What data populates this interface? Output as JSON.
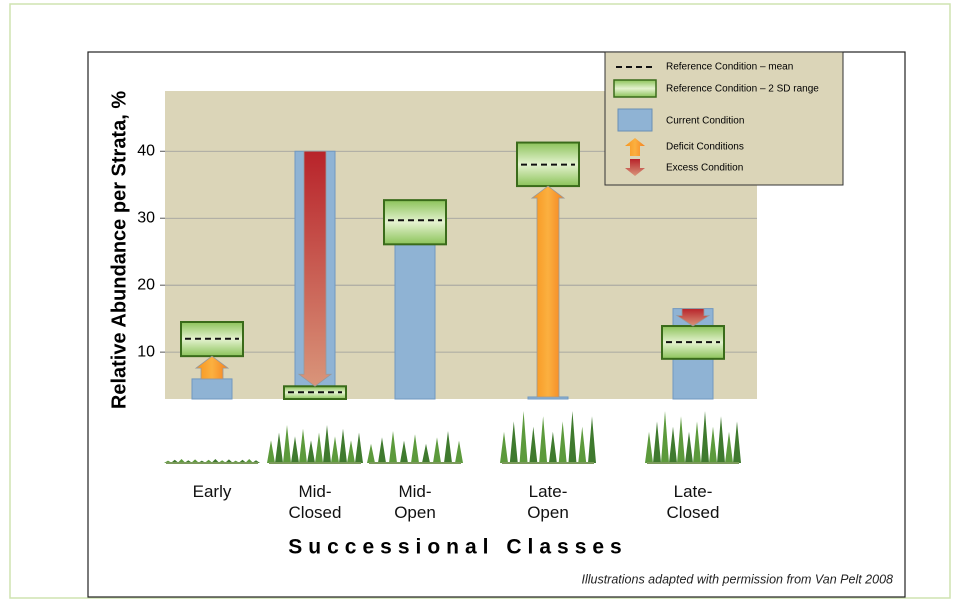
{
  "chart_data": {
    "type": "reference-range-bar",
    "y_label": "Relative Abundance per Strata, %",
    "x_label": "Successional Classes",
    "note": "Illustrations adapted with permission from Van Pelt 2008",
    "categories": [
      "Early",
      "Mid-\nClosed",
      "Mid-\nOpen",
      "Late-\nOpen",
      "Late-\nClosed"
    ],
    "current": {
      "name": "Current Condition",
      "color": "#8fb3d4",
      "values": [
        6,
        40,
        31.5,
        3.3,
        16.5
      ]
    },
    "reference_mean": {
      "name": "Reference Condition – mean",
      "values": [
        12,
        4,
        29.7,
        38,
        11.5
      ]
    },
    "reference_range": {
      "name": "Reference Condition – 2 SD range",
      "color": "#b5d98a",
      "low": [
        9.4,
        3,
        26.1,
        34.8,
        9
      ],
      "high": [
        14.5,
        4.9,
        32.7,
        41.3,
        13.9
      ]
    },
    "deficit": {
      "name": "Deficit Conditions",
      "color": "#f7941d"
    },
    "excess": {
      "name": "Excess Condition",
      "color": "#b8232a"
    },
    "ylim": [
      3,
      49
    ],
    "yticks": [
      10,
      20,
      30,
      40
    ],
    "grid": true
  }
}
